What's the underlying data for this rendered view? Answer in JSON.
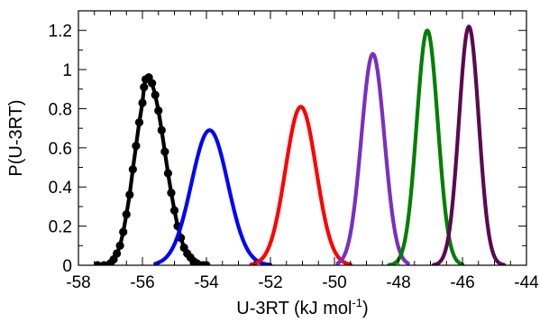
{
  "chart_data": {
    "type": "line",
    "title": "",
    "xlabel": "U-3RT (kJ mol",
    "xlabel_sup": "-1",
    "xlabel_close": ")",
    "ylabel": "P(U-3RT)",
    "xlim": [
      -58,
      -44
    ],
    "ylim": [
      0,
      1.3
    ],
    "xticks": [
      -58,
      -56,
      -54,
      -52,
      -50,
      -48,
      -46,
      -44
    ],
    "xtick_labels": [
      "-58",
      "-56",
      "-54",
      "-52",
      "-50",
      "-48",
      "-46",
      "-44"
    ],
    "yticks": [
      0,
      0.2,
      0.4,
      0.6,
      0.8,
      1.0,
      1.2
    ],
    "ytick_labels": [
      "0",
      "0.2",
      "0.4",
      "0.6",
      "0.8",
      "1",
      "1.2"
    ],
    "x_minor_step": 0.5,
    "y_minor_step": 0.1,
    "grid": false,
    "legend": "none",
    "series": [
      {
        "color": "#000000",
        "markers": true,
        "points": [
          [
            -57.4,
            0.0
          ],
          [
            -57.2,
            0.0
          ],
          [
            -57.0,
            0.01
          ],
          [
            -56.9,
            0.03
          ],
          [
            -56.8,
            0.06
          ],
          [
            -56.7,
            0.1
          ],
          [
            -56.6,
            0.17
          ],
          [
            -56.5,
            0.26
          ],
          [
            -56.4,
            0.36
          ],
          [
            -56.3,
            0.49
          ],
          [
            -56.2,
            0.61
          ],
          [
            -56.1,
            0.73
          ],
          [
            -56.0,
            0.83
          ],
          [
            -55.95,
            0.91
          ],
          [
            -55.9,
            0.95
          ],
          [
            -55.8,
            0.96
          ],
          [
            -55.7,
            0.93
          ],
          [
            -55.6,
            0.87
          ],
          [
            -55.5,
            0.79
          ],
          [
            -55.4,
            0.69
          ],
          [
            -55.3,
            0.58
          ],
          [
            -55.2,
            0.47
          ],
          [
            -55.1,
            0.37
          ],
          [
            -55.0,
            0.28
          ],
          [
            -54.9,
            0.2
          ],
          [
            -54.8,
            0.14
          ],
          [
            -54.7,
            0.09
          ],
          [
            -54.6,
            0.06
          ],
          [
            -54.5,
            0.04
          ],
          [
            -54.4,
            0.02
          ],
          [
            -54.3,
            0.01
          ],
          [
            -54.2,
            0.0
          ],
          [
            -54.1,
            0.0
          ],
          [
            -54.0,
            0.0
          ]
        ]
      },
      {
        "color": "#0000ff",
        "mean": -53.9,
        "peak": 0.69,
        "sigma": 0.57,
        "xmin": -55.6,
        "xmax": -52.0
      },
      {
        "color": "#ff0000",
        "mean": -51.05,
        "peak": 0.81,
        "sigma": 0.48,
        "xmin": -52.6,
        "xmax": -49.5
      },
      {
        "color": "#7b2fbe",
        "mean": -48.8,
        "peak": 1.08,
        "sigma": 0.36,
        "xmin": -49.9,
        "xmax": -47.7
      },
      {
        "color": "#008000",
        "mean": -47.1,
        "peak": 1.2,
        "sigma": 0.33,
        "xmin": -48.3,
        "xmax": -46.0
      },
      {
        "color": "#5b0a4f",
        "mean": -45.8,
        "peak": 1.22,
        "sigma": 0.31,
        "xmin": -46.9,
        "xmax": -44.7
      }
    ]
  }
}
